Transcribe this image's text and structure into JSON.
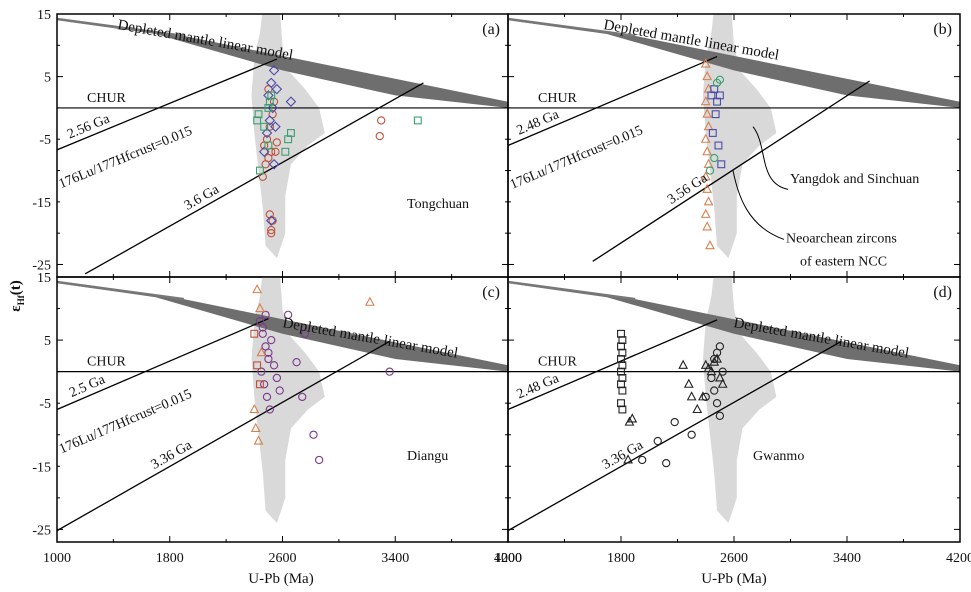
{
  "figure": {
    "x_axis_label": "U-Pb (Ma)",
    "y_axis_label_main": "ε",
    "y_axis_label_sub": "Hf",
    "y_axis_label_tail": "(t)",
    "x_ticks": [
      "1000",
      "1800",
      "2600",
      "3400",
      "4200"
    ],
    "y_ticks": [
      "15",
      "5",
      "-5",
      "-15",
      "-25"
    ],
    "colors": {
      "frame": "#000000",
      "depleted_mantle_band": "#6e6e6e",
      "neoarchean_field": "#d9d9d9",
      "red_circle": "#c0503a",
      "blue_diamond": "#4a4aaa",
      "green_square": "#3aa070",
      "orange_triangle": "#d88050",
      "purple_circle": "#7a3a8a",
      "black_symbol": "#222222"
    },
    "icons": {
      "circle": "open-circle",
      "diamond": "open-diamond",
      "square": "open-square",
      "triangle": "open-triangle"
    }
  },
  "chart_data": [
    {
      "panel": "(a)",
      "type": "scatter",
      "xlim": [
        1000,
        4200
      ],
      "ylim": [
        -27,
        15
      ],
      "site": "Tongchuan",
      "chur_label": "CHUR",
      "depleted_mantle_label": "Depleted mantle linear model",
      "lu_hf_label": "176Lu/177Hfcrust=0.015",
      "reference_lines": [
        {
          "label": "2.56 Ga",
          "from": [
            1000,
            -6.7
          ],
          "to": [
            2560,
            7.8
          ]
        },
        {
          "label": "3.6 Ga",
          "from": [
            1200,
            -26.5
          ],
          "to": [
            3600,
            4.0
          ]
        }
      ],
      "series": [
        {
          "marker": "circle",
          "color": "red",
          "points": [
            [
              2520,
              -20
            ],
            [
              2510,
              -17
            ],
            [
              2530,
              -18
            ],
            [
              2460,
              -11
            ],
            [
              2480,
              -9
            ],
            [
              2500,
              -8
            ],
            [
              2520,
              -7
            ],
            [
              2550,
              -7
            ],
            [
              3300,
              -2
            ],
            [
              3290,
              -4.5
            ],
            [
              2490,
              -5
            ],
            [
              2510,
              -3
            ],
            [
              2530,
              -1
            ],
            [
              2540,
              1
            ],
            [
              2500,
              3
            ],
            [
              2470,
              -6
            ],
            [
              2560,
              -5.5
            ],
            [
              2520,
              -19.5
            ]
          ]
        },
        {
          "marker": "diamond",
          "color": "blue",
          "points": [
            [
              2500,
              2
            ],
            [
              2520,
              4
            ],
            [
              2540,
              6
            ],
            [
              2560,
              3
            ],
            [
              2660,
              1
            ],
            [
              2510,
              -2
            ],
            [
              2490,
              -4
            ],
            [
              2530,
              0
            ],
            [
              2550,
              -3
            ],
            [
              2470,
              -7
            ],
            [
              2540,
              -9
            ],
            [
              2520,
              -18
            ]
          ]
        },
        {
          "marker": "square",
          "color": "green",
          "points": [
            [
              2420,
              -2
            ],
            [
              2430,
              -1
            ],
            [
              2440,
              -10
            ],
            [
              2500,
              0
            ],
            [
              2510,
              1
            ],
            [
              2520,
              2
            ],
            [
              2640,
              -5
            ],
            [
              2620,
              -7
            ],
            [
              2660,
              -4
            ],
            [
              3560,
              -2
            ],
            [
              2470,
              -3
            ],
            [
              2500,
              -6
            ]
          ]
        }
      ]
    },
    {
      "panel": "(b)",
      "type": "scatter",
      "xlim": [
        1000,
        4200
      ],
      "ylim": [
        -27,
        15
      ],
      "chur_label": "CHUR",
      "depleted_mantle_label": "Depleted mantle linear model",
      "lu_hf_label": "176Lu/177Hfcrust=0.015",
      "annotation_sites": "Yangdok and Sinchuan",
      "annotation_field_line1": "Neoarchean zircons",
      "annotation_field_line2": "of eastern NCC",
      "reference_lines": [
        {
          "label": "2.48 Ga",
          "from": [
            1000,
            -6.0
          ],
          "to": [
            2480,
            8.2
          ]
        },
        {
          "label": "3.56 Ga",
          "from": [
            1600,
            -24.5
          ],
          "to": [
            3560,
            4.3
          ]
        }
      ],
      "series": [
        {
          "marker": "triangle",
          "color": "orange",
          "points": [
            [
              2400,
              7
            ],
            [
              2410,
              5
            ],
            [
              2420,
              3
            ],
            [
              2400,
              1
            ],
            [
              2410,
              -1
            ],
            [
              2420,
              -3
            ],
            [
              2400,
              -5
            ],
            [
              2410,
              -7
            ],
            [
              2420,
              -9
            ],
            [
              2400,
              -11
            ],
            [
              2410,
              -13
            ],
            [
              2420,
              -15
            ],
            [
              2400,
              -17
            ],
            [
              2410,
              -19
            ],
            [
              2430,
              -22
            ]
          ]
        },
        {
          "marker": "square",
          "color": "blue",
          "points": [
            [
              2440,
              2
            ],
            [
              2460,
              3
            ],
            [
              2480,
              1
            ],
            [
              2500,
              2
            ],
            [
              2470,
              -1
            ],
            [
              2490,
              -6
            ],
            [
              2510,
              -9
            ],
            [
              2450,
              -4
            ]
          ]
        },
        {
          "marker": "circle",
          "color": "green",
          "points": [
            [
              2430,
              -10
            ],
            [
              2460,
              -8
            ],
            [
              2480,
              4
            ],
            [
              2500,
              4.5
            ]
          ]
        }
      ]
    },
    {
      "panel": "(c)",
      "type": "scatter",
      "xlim": [
        1000,
        4200
      ],
      "ylim": [
        -27,
        15
      ],
      "site": "Diangu",
      "chur_label": "CHUR",
      "depleted_mantle_label": "Depleted mantle linear model",
      "lu_hf_label": "176Lu/177Hfcrust=0.015",
      "reference_lines": [
        {
          "label": "2.5 Ga",
          "from": [
            1000,
            -6.0
          ],
          "to": [
            2500,
            8.4
          ]
        },
        {
          "label": "3.36 Ga",
          "from": [
            1000,
            -25.2
          ],
          "to": [
            3360,
            4.8
          ]
        }
      ],
      "series": [
        {
          "marker": "circle",
          "color": "purple",
          "points": [
            [
              2440,
              8
            ],
            [
              2460,
              6
            ],
            [
              2480,
              4
            ],
            [
              2500,
              2
            ],
            [
              2450,
              0
            ],
            [
              2470,
              -2
            ],
            [
              2490,
              -4
            ],
            [
              2510,
              -6
            ],
            [
              2460,
              7
            ],
            [
              2480,
              9
            ],
            [
              2500,
              3
            ],
            [
              2520,
              5
            ],
            [
              2540,
              1
            ],
            [
              2560,
              -1
            ],
            [
              2580,
              -3
            ],
            [
              2640,
              9
            ],
            [
              2700,
              1.5
            ],
            [
              2760,
              6
            ],
            [
              2740,
              -4
            ],
            [
              2820,
              -10
            ],
            [
              2860,
              -14
            ],
            [
              3360,
              0
            ]
          ]
        },
        {
          "marker": "triangle",
          "color": "orange",
          "points": [
            [
              2420,
              13
            ],
            [
              2430,
              16
            ],
            [
              2440,
              10
            ],
            [
              2450,
              3
            ],
            [
              3220,
              11
            ],
            [
              2400,
              -6
            ],
            [
              2410,
              -9
            ],
            [
              2430,
              -11
            ]
          ]
        },
        {
          "marker": "square",
          "color": "red",
          "points": [
            [
              2400,
              6
            ],
            [
              2420,
              1
            ],
            [
              2440,
              -2
            ]
          ]
        }
      ]
    },
    {
      "panel": "(d)",
      "type": "scatter",
      "xlim": [
        1000,
        4200
      ],
      "ylim": [
        -27,
        15
      ],
      "site": "Gwanmo",
      "chur_label": "CHUR",
      "depleted_mantle_label": "Depleted mantle linear model",
      "reference_lines": [
        {
          "label": "2.48 Ga",
          "from": [
            1000,
            -6.0
          ],
          "to": [
            2480,
            8.2
          ]
        },
        {
          "label": "3.36 Ga",
          "from": [
            1000,
            -25.2
          ],
          "to": [
            3360,
            4.8
          ]
        }
      ],
      "series": [
        {
          "marker": "square",
          "color": "black",
          "points": [
            [
              1800,
              6
            ],
            [
              1810,
              5
            ],
            [
              1800,
              4
            ],
            [
              1810,
              3
            ],
            [
              1800,
              2
            ],
            [
              1810,
              1
            ],
            [
              1800,
              0
            ],
            [
              1810,
              -1
            ],
            [
              1800,
              -2
            ],
            [
              1810,
              -3
            ],
            [
              1800,
              -5
            ],
            [
              1810,
              -6
            ]
          ]
        },
        {
          "marker": "triangle",
          "color": "black",
          "points": [
            [
              2400,
              1
            ],
            [
              2420,
              0.5
            ],
            [
              2440,
              0
            ],
            [
              2460,
              1.5
            ],
            [
              2480,
              2
            ],
            [
              2500,
              -1
            ],
            [
              2340,
              -6
            ],
            [
              2300,
              -4
            ],
            [
              2280,
              -2
            ],
            [
              2240,
              1
            ],
            [
              1880,
              -7.5
            ],
            [
              1860,
              -8
            ],
            [
              1850,
              -14
            ],
            [
              2380,
              -4
            ],
            [
              2520,
              -2
            ]
          ]
        },
        {
          "marker": "circle",
          "color": "black",
          "points": [
            [
              2500,
              4
            ],
            [
              2480,
              3
            ],
            [
              2460,
              2
            ],
            [
              2440,
              -1
            ],
            [
              2460,
              -3
            ],
            [
              2480,
              -5
            ],
            [
              2500,
              -7
            ],
            [
              2300,
              -10
            ],
            [
              2180,
              -8
            ],
            [
              2060,
              -11
            ],
            [
              1950,
              -14
            ],
            [
              2120,
              -14.5
            ],
            [
              2400,
              -4
            ],
            [
              2520,
              0
            ]
          ]
        }
      ]
    }
  ]
}
